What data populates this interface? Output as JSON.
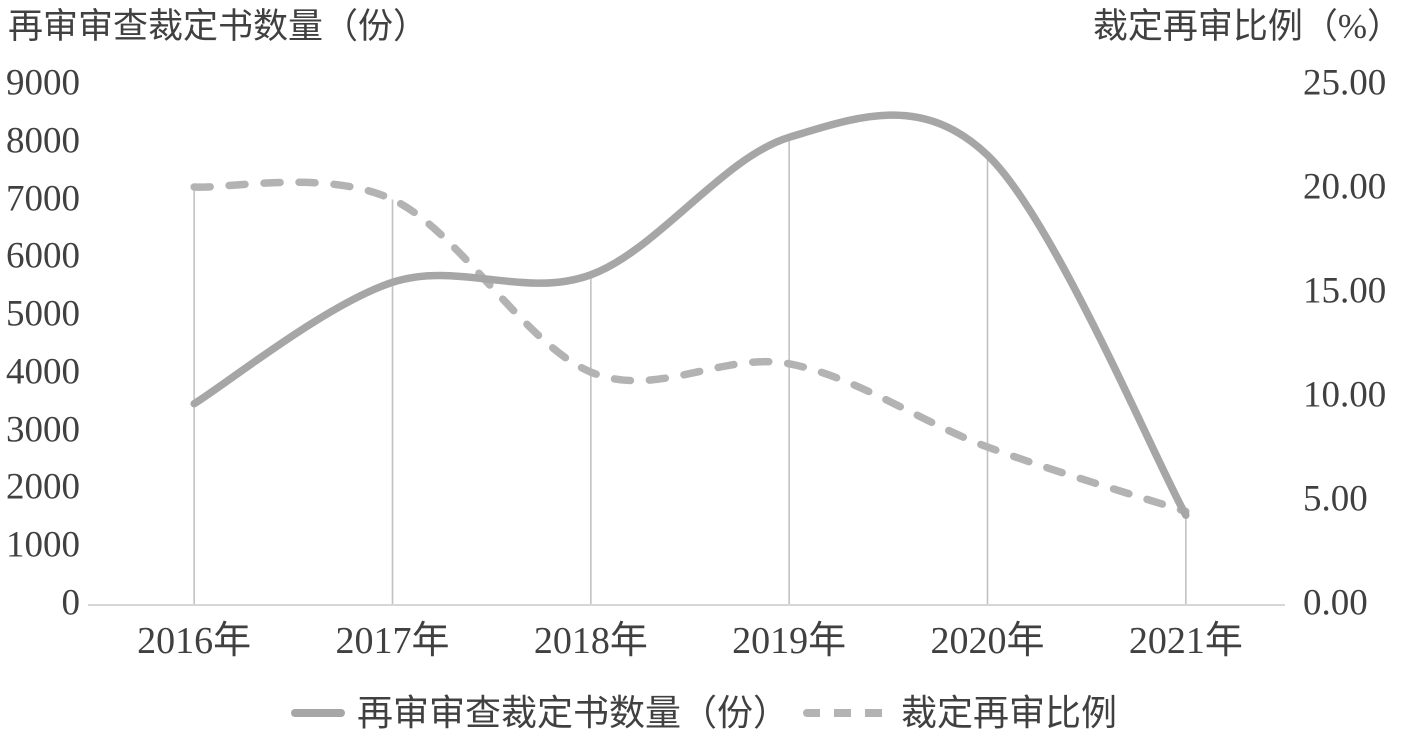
{
  "chart_data": {
    "type": "line",
    "title": "",
    "categories": [
      "2016年",
      "2017年",
      "2018年",
      "2019年",
      "2020年",
      "2021年"
    ],
    "series": [
      {
        "name": "再审审查裁定书数量（份）",
        "axis": "left",
        "style": "solid",
        "smoothed": true,
        "color": "#a6a6a6",
        "values": [
          3450,
          5550,
          5680,
          8060,
          7750,
          1520
        ]
      },
      {
        "name": "裁定再审比例",
        "axis": "right",
        "style": "dashed",
        "smoothed": true,
        "color": "#b3b3b3",
        "values": [
          20.0,
          19.4,
          11.1,
          11.5,
          7.5,
          4.4
        ]
      }
    ],
    "left_axis": {
      "title": "再审审查裁定书数量（份）",
      "min": 0,
      "max": 9000,
      "step": 1000,
      "ticks": [
        "0",
        "1000",
        "2000",
        "3000",
        "4000",
        "5000",
        "6000",
        "7000",
        "8000",
        "9000"
      ]
    },
    "right_axis": {
      "title": "裁定再审比例（%）",
      "min": 0,
      "max": 25,
      "step": 5,
      "ticks": [
        "0.00",
        "5.00",
        "10.00",
        "15.00",
        "20.00",
        "25.00"
      ]
    },
    "legend_position": "bottom",
    "grid": "vertical drop lines from each data point to the x axis",
    "background": "#ffffff"
  },
  "legend": {
    "item1_label": "再审审查裁定书数量（份）",
    "item2_label": "裁定再审比例"
  },
  "colors": {
    "text": "#404040",
    "solid_series": "#a6a6a6",
    "dashed_series": "#b3b3b3",
    "drop_line": "#c2c2c2",
    "axis_line": "#d6d6d6"
  }
}
